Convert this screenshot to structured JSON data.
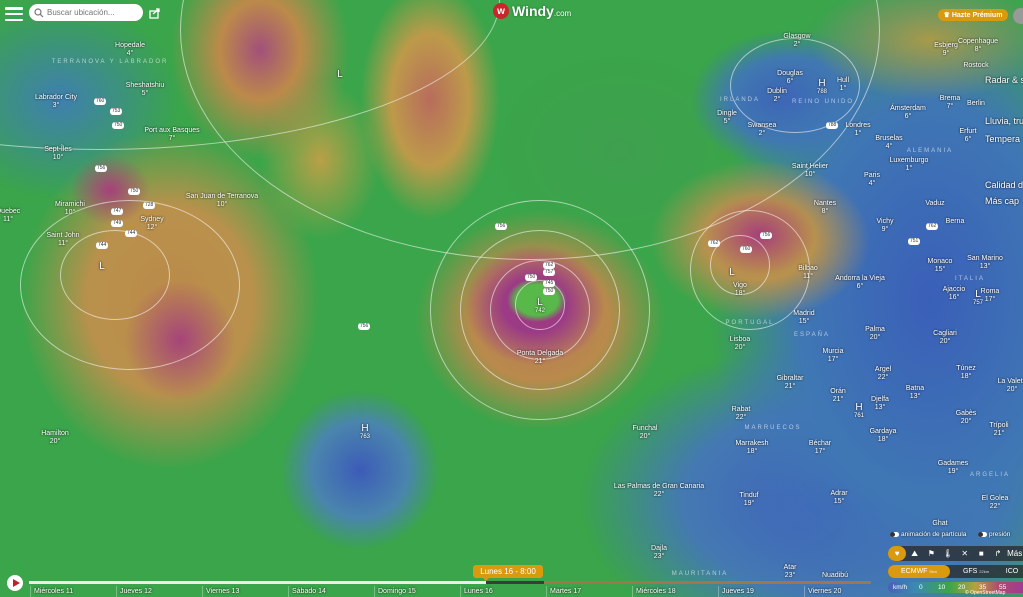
{
  "header": {
    "search_placeholder": "Buscar ubicación...",
    "logo_text": "Windy",
    "logo_suffix": ".com",
    "premium_label": "Hazte Prémium"
  },
  "side_menu": [
    "Radar & sat",
    "Lluvia, tru",
    "Tempera",
    "Calidad del",
    "Más cap"
  ],
  "pressure_systems": [
    {
      "type": "L",
      "value": "742"
    },
    {
      "type": "L",
      "value": ""
    },
    {
      "type": "L",
      "value": ""
    },
    {
      "type": "H",
      "value": "763"
    },
    {
      "type": "H",
      "value": "788"
    },
    {
      "type": "H",
      "value": "761"
    },
    {
      "type": "L",
      "value": "757"
    },
    {
      "type": "L",
      "value": ""
    }
  ],
  "isobar_labels": [
    "762",
    "757",
    "750",
    "745",
    "750",
    "728",
    "747",
    "749",
    "744",
    "756",
    "750",
    "744",
    "760",
    "753",
    "750",
    "762",
    "788",
    "756",
    "760",
    "762",
    "751",
    "756",
    "756"
  ],
  "cities": [
    {
      "name": "Hopedale",
      "temp": "4°"
    },
    {
      "name": "Sheshatshiu",
      "temp": "5°"
    },
    {
      "name": "Labrador City",
      "temp": "3°"
    },
    {
      "name": "Port aux Basques",
      "temp": "7°"
    },
    {
      "name": "Sept-Îles",
      "temp": "10°"
    },
    {
      "name": "Miramichi",
      "temp": "10°"
    },
    {
      "name": "Sydney",
      "temp": "12°"
    },
    {
      "name": "Saint John",
      "temp": "11°"
    },
    {
      "name": "Quebec",
      "temp": "11°"
    },
    {
      "name": "San Juan de Terranova",
      "temp": "10°"
    },
    {
      "name": "Hamilton",
      "temp": "20°"
    },
    {
      "name": "Ponta Delgada",
      "temp": "21°"
    },
    {
      "name": "Funchal",
      "temp": "20°"
    },
    {
      "name": "Las Palmas de Gran Canaria",
      "temp": "22°"
    },
    {
      "name": "Dajla",
      "temp": "23°"
    },
    {
      "name": "Glasgow",
      "temp": "2°"
    },
    {
      "name": "Douglas",
      "temp": "6°"
    },
    {
      "name": "Dublin",
      "temp": "2°"
    },
    {
      "name": "Dingle",
      "temp": "5°"
    },
    {
      "name": "Hull",
      "temp": "1°"
    },
    {
      "name": "Swansea",
      "temp": "2°"
    },
    {
      "name": "Londres",
      "temp": "1°"
    },
    {
      "name": "Saint Helier",
      "temp": "10°"
    },
    {
      "name": "Paris",
      "temp": "4°"
    },
    {
      "name": "Nantes",
      "temp": "8°"
    },
    {
      "name": "Esbjerg",
      "temp": "9°"
    },
    {
      "name": "Copenhague",
      "temp": "8°"
    },
    {
      "name": "Rostock",
      "temp": ""
    },
    {
      "name": "Brema",
      "temp": "7°"
    },
    {
      "name": "Ámsterdam",
      "temp": "6°"
    },
    {
      "name": "Berlin",
      "temp": ""
    },
    {
      "name": "Erfurt",
      "temp": "6°"
    },
    {
      "name": "Bruselas",
      "temp": "4°"
    },
    {
      "name": "Luxemburgo",
      "temp": "1°"
    },
    {
      "name": "Vaduz",
      "temp": ""
    },
    {
      "name": "Berna",
      "temp": ""
    },
    {
      "name": "Vichy",
      "temp": "9°"
    },
    {
      "name": "Vigo",
      "temp": "18°"
    },
    {
      "name": "Bilbao",
      "temp": "11°"
    },
    {
      "name": "Andorra la Vieja",
      "temp": "6°"
    },
    {
      "name": "Madrid",
      "temp": "15°"
    },
    {
      "name": "Lisboa",
      "temp": "20°"
    },
    {
      "name": "Murcia",
      "temp": "17°"
    },
    {
      "name": "Palma",
      "temp": "20°"
    },
    {
      "name": "Gibraltar",
      "temp": "21°"
    },
    {
      "name": "Orán",
      "temp": "21°"
    },
    {
      "name": "Argel",
      "temp": "22°"
    },
    {
      "name": "Rabat",
      "temp": "22°"
    },
    {
      "name": "Djelfa",
      "temp": "13°"
    },
    {
      "name": "Marrakesh",
      "temp": "18°"
    },
    {
      "name": "Béchar",
      "temp": "17°"
    },
    {
      "name": "Tinduf",
      "temp": "19°"
    },
    {
      "name": "Adrar",
      "temp": "15°"
    },
    {
      "name": "Gardaya",
      "temp": "18°"
    },
    {
      "name": "Batna",
      "temp": "13°"
    },
    {
      "name": "Monaco",
      "temp": "15°"
    },
    {
      "name": "San Marino",
      "temp": "13°"
    },
    {
      "name": "Ajaccio",
      "temp": "16°"
    },
    {
      "name": "Roma",
      "temp": "17°"
    },
    {
      "name": "Cagliari",
      "temp": "20°"
    },
    {
      "name": "Túnez",
      "temp": "18°"
    },
    {
      "name": "Gabès",
      "temp": "20°"
    },
    {
      "name": "Trípoli",
      "temp": "21°"
    },
    {
      "name": "Gadames",
      "temp": "19°"
    },
    {
      "name": "La Valeta",
      "temp": "20°"
    },
    {
      "name": "Ghat",
      "temp": ""
    },
    {
      "name": "Atar",
      "temp": "23°"
    },
    {
      "name": "Nuadibú",
      "temp": ""
    },
    {
      "name": "El Golea",
      "temp": "22°"
    }
  ],
  "countries": [
    "TERRANOVA Y LABRADOR",
    "REINO UNIDO",
    "IRLANDA",
    "PORTUGAL",
    "ESPAÑA",
    "MARRUECOS",
    "ALEMANIA",
    "ITALIA",
    "ARGELIA",
    "MAURITANIA"
  ],
  "timeline": {
    "current_label": "Lunes 16 - 8:00",
    "progress_fraction": 0.543,
    "days": [
      "Miércoles 11",
      "Jueves 12",
      "Viernes 13",
      "Sábado 14",
      "Domingo 15",
      "Lunes 16",
      "Martes 17",
      "Miércoles 18",
      "Jueves 19",
      "Viernes 20"
    ]
  },
  "controls": {
    "particles_label": "animación de partícula",
    "pressure_label": "presión",
    "more_label": "Más",
    "layer_icons": [
      "heart-icon",
      "mountain-icon",
      "flag-icon",
      "thermometer-icon",
      "wind-icon",
      "camera-icon",
      "satellite-icon"
    ],
    "models": [
      {
        "name": "ECMWF",
        "res": "9km",
        "selected": true
      },
      {
        "name": "GFS",
        "res": "22km",
        "selected": false
      },
      {
        "name": "ICO",
        "res": "",
        "selected": false
      }
    ]
  },
  "legend": {
    "unit": "km/h",
    "ticks": [
      "0",
      "10",
      "20",
      "35",
      "55"
    ]
  },
  "attribution": "© OpenStreetMap",
  "colors": {
    "accent": "#d99a10",
    "logo": "#c8262b",
    "play": "#b8242a"
  }
}
